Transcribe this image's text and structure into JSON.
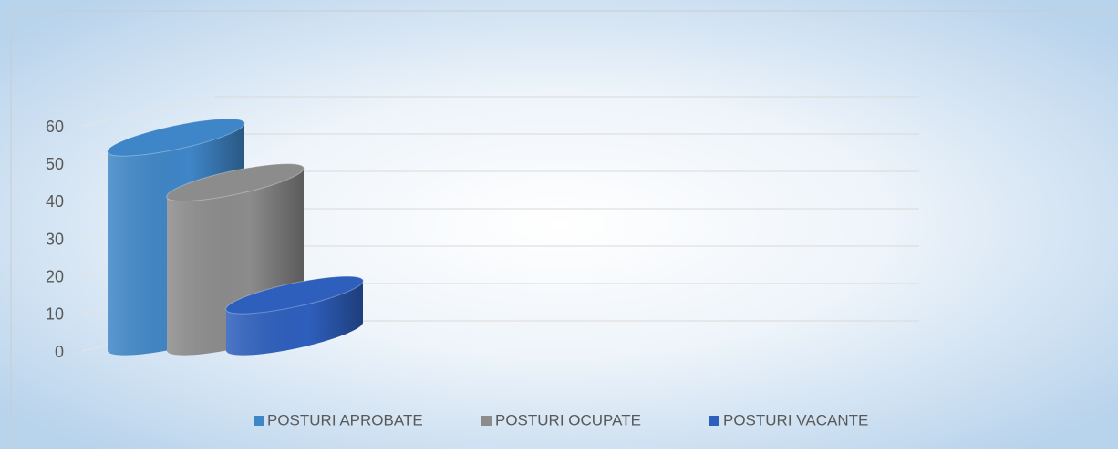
{
  "chart_data": {
    "type": "bar3d",
    "categories": [
      null
    ],
    "series": [
      {
        "name": "POSTURI APROBATE",
        "color": "#3f86c8",
        "values": [
          54
        ]
      },
      {
        "name": "POSTURI OCUPATE",
        "color": "#8c8c8c",
        "values": [
          42
        ]
      },
      {
        "name": "POSTURI VACANTE",
        "color": "#2e5fbd",
        "values": [
          12
        ]
      }
    ],
    "ylim": [
      0,
      60
    ],
    "yticks": [
      0,
      10,
      20,
      30,
      40,
      50,
      60
    ],
    "grid": true,
    "legend": "bottom"
  }
}
